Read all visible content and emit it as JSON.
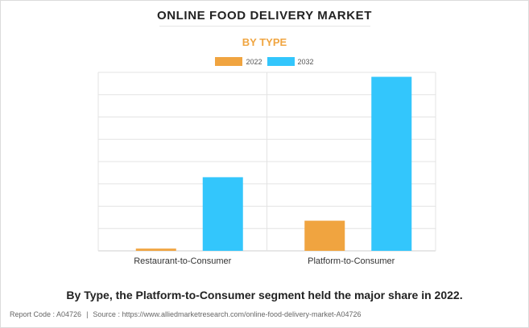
{
  "title": "ONLINE FOOD DELIVERY MARKET",
  "subtitle": "BY TYPE",
  "caption": "By Type, the Platform-to-Consumer segment held the major share in 2022.",
  "footer": {
    "report_code": "Report Code : A04726",
    "separator": "|",
    "source": "Source : https://www.alliedmarketresearch.com/online-food-delivery-market-A04726"
  },
  "colors": {
    "series_2022": "#f0a440",
    "series_2032": "#33c6fc",
    "subtitle": "#f0a540",
    "grid": "#e3e3e3"
  },
  "chart_data": {
    "type": "bar",
    "title": "ONLINE FOOD DELIVERY MARKET",
    "subtitle": "BY TYPE",
    "categories": [
      "Restaurant-to-Consumer",
      "Platform-to-Consumer"
    ],
    "series": [
      {
        "name": "2022",
        "values": [
          1,
          13.5
        ]
      },
      {
        "name": "2032",
        "values": [
          33,
          78
        ]
      }
    ],
    "ylim": [
      0,
      80
    ],
    "yticks_visible": false,
    "grid": true,
    "legend_position": "top-center",
    "xlabel": "",
    "ylabel": ""
  }
}
